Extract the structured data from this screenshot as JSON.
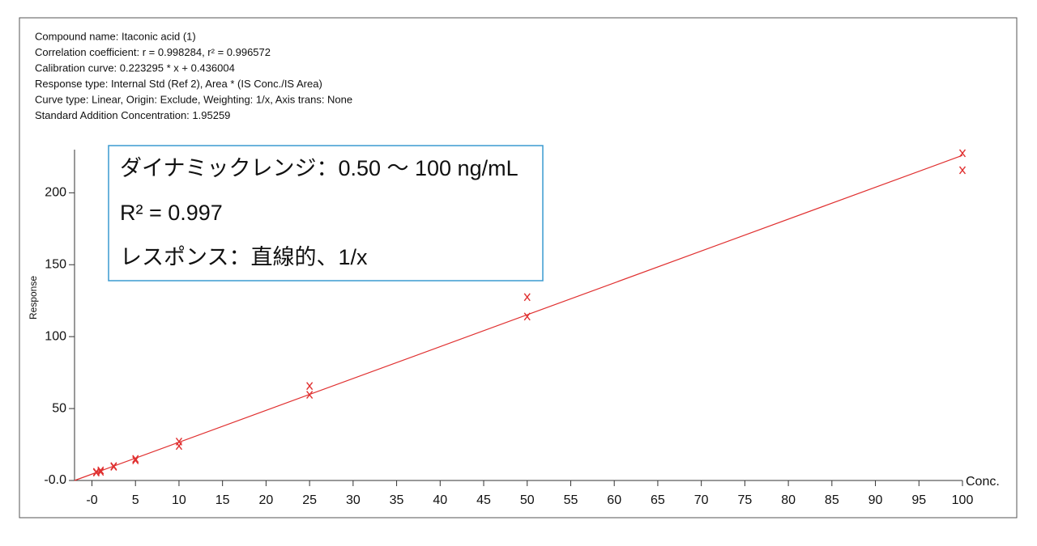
{
  "chart_data": {
    "type": "scatter",
    "info_lines": [
      "Compound name: Itaconic acid (1)",
      "Correlation coefficient: r = 0.998284, r² = 0.996572",
      "Calibration curve: 0.223295 * x + 0.436004",
      "Response type: Internal Std (Ref 2), Area * (IS Conc./IS Area)",
      "Curve type: Linear, Origin: Exclude, Weighting: 1/x, Axis trans: None",
      "Standard Addition Concentration: 1.95259"
    ],
    "annotations": [
      "ダイナミックレンジ：0.50 ～ 100 ng/mL",
      "R² = 0.997",
      "レスポンス：直線的、1/x"
    ],
    "x_label": "Conc.",
    "y_label": "Response",
    "xlim": [
      -2,
      100
    ],
    "ylim": [
      0,
      230
    ],
    "xticks": [
      {
        "value": 0,
        "label": "-0"
      },
      5,
      10,
      15,
      20,
      25,
      30,
      35,
      40,
      45,
      50,
      55,
      60,
      65,
      70,
      75,
      80,
      85,
      90,
      95,
      100
    ],
    "yticks": [
      {
        "value": 0,
        "label": "-0.0"
      },
      50,
      100,
      150,
      200
    ],
    "series": [
      {
        "color": "#e03030",
        "x": [
          0.5,
          0.5,
          1,
          1,
          2.5,
          2.5,
          5,
          5,
          10,
          10,
          25,
          25,
          50,
          50,
          100,
          100
        ],
        "values": [
          6,
          5.5,
          7,
          6,
          10,
          9.5,
          15,
          14,
          27,
          24,
          65.7,
          59.6,
          127.5,
          114,
          227.5,
          215.7
        ]
      }
    ],
    "fit": {
      "color": "#e03030",
      "x": [
        -2,
        100
      ],
      "values": [
        0,
        226
      ]
    }
  }
}
